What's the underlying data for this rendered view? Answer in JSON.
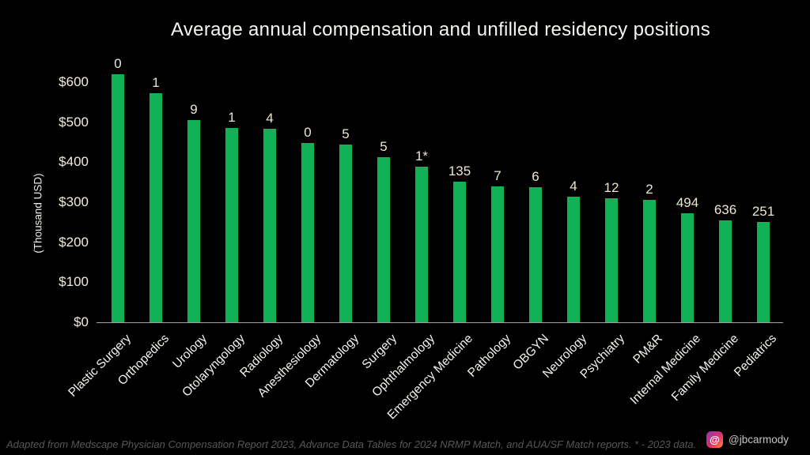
{
  "title": "Average annual compensation and unfilled residency positions",
  "y_axis_title": "(Thousand USD)",
  "footer_note": "Adapted from Medscape Physician Compensation Report 2023, Advance Data Tables for 2024 NRMP Match, and AUA/SF Match reports. * - 2023 data.",
  "credit": {
    "handle": "@jbcarmody",
    "icon": "threads-icon",
    "icon_glyph": "@"
  },
  "colors": {
    "background": "#000000",
    "bar": "#12b156",
    "bar_value_label": "#ece5d3",
    "axis_text": "#f2ede2",
    "category_text": "#f5f3ee",
    "axis_line": "#a3a3a3",
    "footer_text": "#575757",
    "credit_text": "#c6c6c6"
  },
  "chart_data": {
    "type": "bar",
    "title": "Average annual compensation and unfilled residency positions",
    "xlabel": "",
    "ylabel": "(Thousand USD)",
    "ylim": [
      0,
      650
    ],
    "grid": false,
    "legend": false,
    "bar_color": "#12b156",
    "y_ticks": [
      {
        "value": 0,
        "label": "$0"
      },
      {
        "value": 100,
        "label": "$100"
      },
      {
        "value": 200,
        "label": "$200"
      },
      {
        "value": 300,
        "label": "$300"
      },
      {
        "value": 400,
        "label": "$400"
      },
      {
        "value": 500,
        "label": "$500"
      },
      {
        "value": 600,
        "label": "$600"
      }
    ],
    "categories": [
      "Plastic Surgery",
      "Orthopedics",
      "Urology",
      "Otolaryngology",
      "Radiology",
      "Anesthesiology",
      "Dermatology",
      "Surgery",
      "Ophthalmology",
      "Emergency Medicine",
      "Pathology",
      "OBGYN",
      "Neurology",
      "Psychiatry",
      "PM&R",
      "Internal Medicine",
      "Family Medicine",
      "Pediatrics"
    ],
    "series": [
      {
        "name": "Average annual compensation (thousand USD)",
        "values": [
          619,
          573,
          506,
          485,
          483,
          448,
          443,
          412,
          388,
          352,
          339,
          337,
          313,
          309,
          306,
          273,
          255,
          251
        ]
      },
      {
        "name": "Unfilled residency positions (labels above bars)",
        "labels": [
          "0",
          "1",
          "9",
          "1",
          "4",
          "0",
          "5",
          "5",
          "1*",
          "135",
          "7",
          "6",
          "4",
          "12",
          "2",
          "494",
          "636",
          "251"
        ]
      }
    ]
  }
}
